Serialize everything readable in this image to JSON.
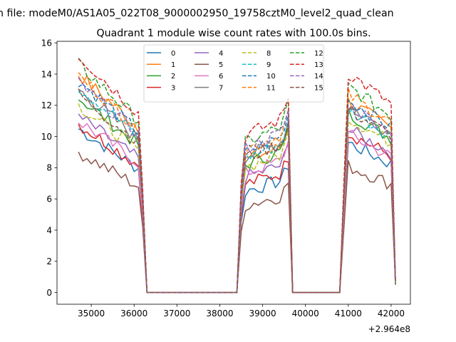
{
  "chart_data": {
    "type": "line",
    "suptitle": "n file: modeM0/AS1A05_022T08_9000002950_19758cztM0_level2_quad_clean",
    "title": "Quadrant 1 module wise count rates with 100.0s bins.",
    "xlabel": "",
    "ylabel": "",
    "x_offset_label": "+2.964e8",
    "xlim": [
      34200,
      42450
    ],
    "ylim": [
      -0.75,
      16.1
    ],
    "x_ticks": [
      35000,
      36000,
      37000,
      38000,
      39000,
      40000,
      41000,
      42000
    ],
    "x_tick_labels": [
      "35000",
      "36000",
      "37000",
      "38000",
      "39000",
      "40000",
      "41000",
      "42000"
    ],
    "y_ticks": [
      0,
      2,
      4,
      6,
      8,
      10,
      12,
      14,
      16
    ],
    "y_tick_labels": [
      "0",
      "2",
      "4",
      "6",
      "8",
      "10",
      "12",
      "14",
      "16"
    ],
    "legend_position": "upper center",
    "segments": [
      {
        "start": 34700,
        "end": 36200,
        "drop_to": 36300,
        "gap_until": 38400
      },
      {
        "start": 38500,
        "end": 39600,
        "drop_to": 39700,
        "gap_until": 40800
      },
      {
        "start": 40900,
        "end": 42100
      }
    ],
    "series": [
      {
        "name": "0",
        "color": "#1f77b4",
        "dash": "solid",
        "levels": [
          10.5,
          7.3,
          9.0
        ]
      },
      {
        "name": "1",
        "color": "#ff7f0e",
        "dash": "solid",
        "levels": [
          14.0,
          9.5,
          11.5
        ]
      },
      {
        "name": "2",
        "color": "#2ca02c",
        "dash": "solid",
        "levels": [
          12.5,
          9.2,
          10.8
        ]
      },
      {
        "name": "3",
        "color": "#d62728",
        "dash": "solid",
        "levels": [
          10.8,
          7.8,
          9.6
        ]
      },
      {
        "name": "4",
        "color": "#9467bd",
        "dash": "solid",
        "levels": [
          11.3,
          8.3,
          9.8
        ]
      },
      {
        "name": "5",
        "color": "#8c564b",
        "dash": "solid",
        "levels": [
          9.0,
          6.3,
          7.6
        ]
      },
      {
        "name": "6",
        "color": "#e377c2",
        "dash": "solid",
        "levels": [
          11.0,
          8.6,
          9.5
        ]
      },
      {
        "name": "7",
        "color": "#7f7f7f",
        "dash": "solid",
        "levels": [
          13.0,
          9.8,
          11.2
        ]
      },
      {
        "name": "8",
        "color": "#bcbd22",
        "dash": "dashed",
        "levels": [
          12.0,
          9.0,
          10.5
        ]
      },
      {
        "name": "9",
        "color": "#17becf",
        "dash": "dashed",
        "levels": [
          13.2,
          9.7,
          11.0
        ]
      },
      {
        "name": "10",
        "color": "#1f77b4",
        "dash": "dashed",
        "levels": [
          13.6,
          10.1,
          11.6
        ]
      },
      {
        "name": "11",
        "color": "#ff7f0e",
        "dash": "dashed",
        "levels": [
          13.9,
          10.3,
          11.9
        ]
      },
      {
        "name": "12",
        "color": "#2ca02c",
        "dash": "dashed",
        "levels": [
          14.6,
          10.8,
          12.4
        ]
      },
      {
        "name": "13",
        "color": "#d62728",
        "dash": "dashed",
        "levels": [
          15.2,
          11.3,
          13.2
        ]
      },
      {
        "name": "14",
        "color": "#9467bd",
        "dash": "dashed",
        "levels": [
          13.4,
          10.4,
          11.3
        ]
      },
      {
        "name": "15",
        "color": "#8c564b",
        "dash": "dashed",
        "levels": [
          12.7,
          9.7,
          11.0
        ]
      }
    ]
  }
}
